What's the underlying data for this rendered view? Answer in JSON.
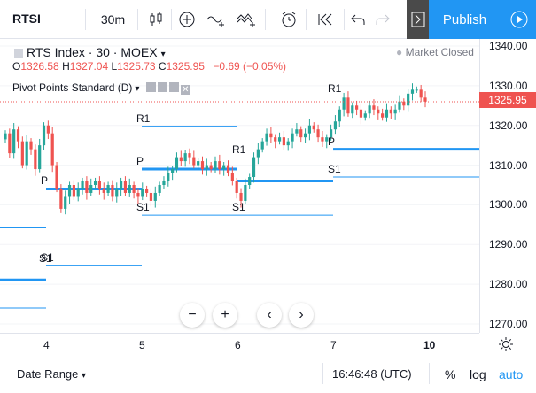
{
  "toolbar": {
    "symbol": "RTSI",
    "interval": "30m",
    "publish_label": "Publish"
  },
  "legend": {
    "title": "RTS Index · 30 · MOEX",
    "market_status": "Market Closed",
    "ohlc": {
      "o_label": "O",
      "o": "1326.58",
      "h_label": "H",
      "h": "1327.04",
      "l_label": "L",
      "l": "1325.73",
      "c_label": "C",
      "c": "1325.95",
      "change": "−0.69 (−0.05%)"
    },
    "indicator": "Pivot Points Standard (D)"
  },
  "price_axis": {
    "labels": [
      "1340.00",
      "1330.00",
      "1320.00",
      "1310.00",
      "1300.00",
      "1290.00",
      "1280.00",
      "1270.00"
    ],
    "last_price": "1325.95"
  },
  "time_axis": {
    "labels": [
      "4",
      "5",
      "6",
      "7",
      "10"
    ]
  },
  "pivots": {
    "p": "P",
    "r1": "R1",
    "s1": "S1"
  },
  "bottom": {
    "date_range": "Date Range",
    "time": "16:46:48 (UTC)",
    "percent": "%",
    "log": "log",
    "auto": "auto"
  },
  "colors": {
    "up": "#26a69a",
    "down": "#ef5350",
    "pivot": "#2196f3",
    "accent": "#2196f3"
  }
}
